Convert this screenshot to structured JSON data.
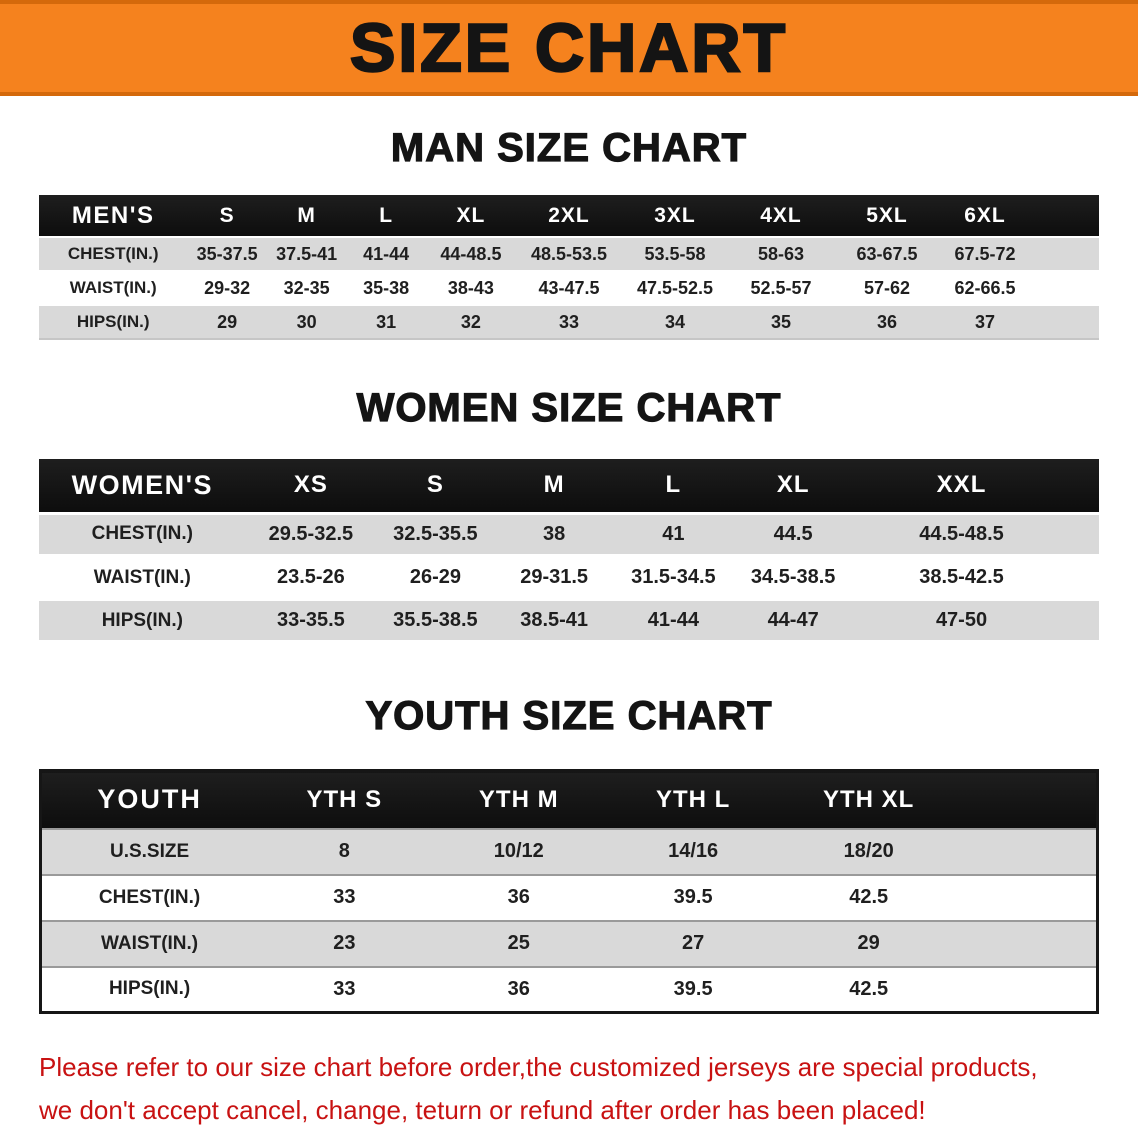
{
  "banner": {
    "title": "SIZE CHART"
  },
  "men": {
    "heading": "MAN SIZE CHART",
    "columns": [
      "MEN'S",
      "S",
      "M",
      "L",
      "XL",
      "2XL",
      "3XL",
      "4XL",
      "5XL",
      "6XL"
    ],
    "rows": [
      [
        "CHEST(IN.)",
        "35-37.5",
        "37.5-41",
        "41-44",
        "44-48.5",
        "48.5-53.5",
        "53.5-58",
        "58-63",
        "63-67.5",
        "67.5-72"
      ],
      [
        "WAIST(IN.)",
        "29-32",
        "32-35",
        "35-38",
        "38-43",
        "43-47.5",
        "47.5-52.5",
        "52.5-57",
        "57-62",
        "62-66.5"
      ],
      [
        "HIPS(IN.)",
        "29",
        "30",
        "31",
        "32",
        "33",
        "34",
        "35",
        "36",
        "37"
      ]
    ]
  },
  "women": {
    "heading": "WOMEN SIZE CHART",
    "columns": [
      "WOMEN'S",
      "XS",
      "S",
      "M",
      "L",
      "XL",
      "XXL"
    ],
    "rows": [
      [
        "CHEST(IN.)",
        "29.5-32.5",
        "32.5-35.5",
        "38",
        "41",
        "44.5",
        "44.5-48.5"
      ],
      [
        "WAIST(IN.)",
        "23.5-26",
        "26-29",
        "29-31.5",
        "31.5-34.5",
        "34.5-38.5",
        "38.5-42.5"
      ],
      [
        "HIPS(IN.)",
        "33-35.5",
        "35.5-38.5",
        "38.5-41",
        "41-44",
        "44-47",
        "47-50"
      ]
    ]
  },
  "youth": {
    "heading": "YOUTH SIZE CHART",
    "columns": [
      "YOUTH",
      "YTH S",
      "YTH M",
      "YTH L",
      "YTH XL"
    ],
    "rows": [
      [
        "U.S.SIZE",
        "8",
        "10/12",
        "14/16",
        "18/20"
      ],
      [
        "CHEST(IN.)",
        "33",
        "36",
        "39.5",
        "42.5"
      ],
      [
        "WAIST(IN.)",
        "23",
        "25",
        "27",
        "29"
      ],
      [
        "HIPS(IN.)",
        "33",
        "36",
        "39.5",
        "42.5"
      ]
    ]
  },
  "notice": {
    "line1": "Please refer to our size chart before order,the customized jerseys are special products,",
    "line2": "we don't accept cancel, change, teturn or refund after order has been placed!"
  },
  "colors": {
    "banner-bg": "#F5821E",
    "banner-edge": "#D4690B",
    "header-bg": "#141414",
    "row-shade": "#D9D9D9",
    "notice-color": "#C81212"
  }
}
